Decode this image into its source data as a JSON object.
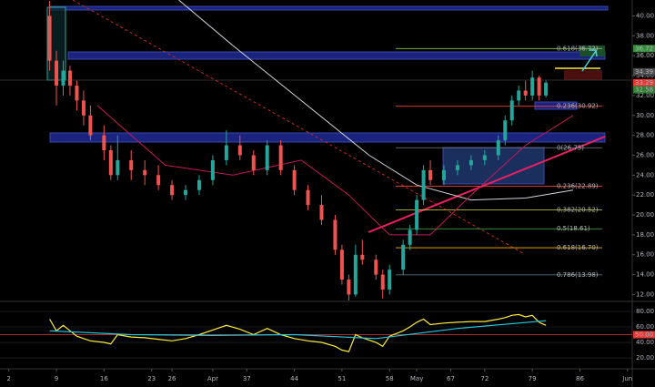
{
  "chart_data": {
    "type": "candlestick",
    "xlim": [
      0.7,
      93.7
    ],
    "ylim": [
      11.4,
      41.6
    ],
    "xticks": [
      2,
      9,
      16,
      23,
      26,
      {
        "value": 32,
        "label": "Apr"
      },
      37,
      44,
      51,
      58,
      {
        "value": 62,
        "label": "May"
      },
      67,
      72,
      79,
      86,
      {
        "value": 93,
        "label": "Jun"
      }
    ],
    "yticks": [
      {
        "value": 40,
        "label": "40.00"
      },
      {
        "value": 38,
        "label": "38.00"
      },
      {
        "value": 36,
        "label": "36.00"
      },
      {
        "value": 34,
        "label": "34.00"
      },
      {
        "value": 32,
        "label": "32.00"
      },
      {
        "value": 30,
        "label": "30.00"
      },
      {
        "value": 28,
        "label": "28.00"
      },
      {
        "value": 26,
        "label": "26.00"
      },
      {
        "value": 24,
        "label": "24.00"
      },
      {
        "value": 22,
        "label": "22.00"
      },
      {
        "value": 20,
        "label": "20.00"
      },
      {
        "value": 18,
        "label": "18.00"
      },
      {
        "value": 16,
        "label": "16.00"
      },
      {
        "value": 14,
        "label": "14.00"
      },
      {
        "value": 12,
        "label": "12.00"
      }
    ],
    "up_color": "#26a69a",
    "down_color": "#ef5350",
    "x": [
      8,
      9,
      10,
      11,
      12,
      13,
      14,
      16,
      17,
      18,
      20,
      22,
      24,
      26,
      28,
      30,
      32,
      34,
      36,
      38,
      40,
      42,
      44,
      46,
      48,
      50,
      51,
      52,
      53,
      54,
      56,
      57,
      58,
      60,
      61,
      62,
      63,
      64,
      66,
      68,
      70,
      72,
      74,
      75,
      76,
      77,
      78,
      79,
      80,
      81
    ],
    "open": [
      40,
      35.5,
      33,
      34.5,
      33,
      31.5,
      30,
      28,
      26.5,
      24,
      25.5,
      24.5,
      24,
      23,
      22,
      22.5,
      23.5,
      25.5,
      27,
      26,
      24.5,
      27,
      24.5,
      22.5,
      21,
      19.5,
      16.5,
      13.5,
      12,
      16,
      15.5,
      14,
      12.5,
      14.5,
      17,
      18.5,
      21.5,
      24.5,
      23.5,
      24.5,
      25,
      25.5,
      26,
      27.5,
      29.5,
      31.5,
      32.5,
      32,
      33.8,
      32
    ],
    "high": [
      41.5,
      36.5,
      35.5,
      35,
      33.5,
      32.5,
      31,
      29,
      27,
      28,
      26.5,
      25.5,
      25,
      23.5,
      23,
      24,
      26,
      28.5,
      28,
      26.5,
      27.5,
      27.5,
      25,
      23,
      22,
      20,
      17,
      14,
      17,
      17.5,
      16,
      14.5,
      15,
      17.5,
      19,
      22,
      25,
      25.5,
      25,
      25.5,
      26,
      26.5,
      28,
      30,
      32,
      33,
      33.5,
      34.5,
      34,
      33.5
    ],
    "low": [
      34.5,
      31,
      32,
      32,
      30.5,
      29,
      27.5,
      25.5,
      23.5,
      23.5,
      23.5,
      23,
      22.5,
      21.5,
      21.5,
      22,
      23,
      25,
      25.5,
      24,
      24,
      24,
      22,
      20.5,
      19,
      16,
      13,
      11.4,
      11.8,
      15,
      13.5,
      11.6,
      12,
      14,
      16.5,
      18,
      21,
      23,
      23,
      24,
      24.5,
      25,
      25.5,
      27,
      29,
      31,
      31.5,
      31.5,
      31.5,
      31.8
    ],
    "close": [
      35.5,
      33,
      34.5,
      33,
      31.5,
      30,
      28,
      26.5,
      24,
      25.5,
      24.5,
      24,
      23,
      22,
      22.5,
      23.5,
      25.5,
      27,
      26,
      24.5,
      27,
      24.5,
      22.5,
      21,
      19.5,
      16.5,
      13.5,
      12,
      16,
      15.5,
      14,
      12.5,
      14.5,
      17,
      18.5,
      21.5,
      24.5,
      23.5,
      24.5,
      25,
      25.5,
      26,
      27.5,
      29.5,
      31.5,
      32.5,
      32,
      33.8,
      32,
      33.29
    ],
    "lines": [
      {
        "color": "#d1d4dc",
        "x": [
          27,
          35,
          45,
          55,
          62,
          70,
          78,
          85
        ],
        "values": [
          41.6,
          37,
          31.5,
          26,
          23,
          21.5,
          21.7,
          22.5
        ]
      },
      {
        "color": "#c2185b",
        "x": [
          15,
          25,
          35,
          45,
          52,
          58,
          64,
          70,
          78,
          85
        ],
        "values": [
          31,
          25,
          24,
          25.5,
          22,
          18,
          18,
          22,
          27,
          30
        ]
      }
    ],
    "fib_levels": [
      {
        "value": 36.72,
        "label": "0.618(36.72)",
        "color": "#8bc34a"
      },
      {
        "value": 30.92,
        "label": "0.236(30.92)",
        "color": "#f44336"
      },
      {
        "value": 26.75,
        "label": "0(26.75)",
        "color": "#787b86"
      },
      {
        "value": 22.89,
        "label": "0.236(22.89)",
        "color": "#f44336"
      },
      {
        "value": 20.52,
        "label": "0.382(20.52)",
        "color": "#cddc39"
      },
      {
        "value": 18.61,
        "label": "0.5(18.61)",
        "color": "#4caf50"
      },
      {
        "value": 16.7,
        "label": "0.618(16.70)",
        "color": "#ffb300"
      },
      {
        "value": 13.98,
        "label": "0.786(13.98)",
        "color": "#546e7a"
      }
    ],
    "price_badges": [
      {
        "value": 36.72,
        "color": "#388e3c"
      },
      {
        "value": 34.39,
        "color": "#4a4a4a"
      },
      {
        "value": 33.29,
        "color": "#e53935"
      },
      {
        "value": 32.58,
        "color": "#2e7d32"
      }
    ],
    "indicator": {
      "ylim": [
        5.9,
        90.6
      ],
      "yticks": [
        {
          "value": 80,
          "label": "80.00"
        },
        {
          "value": 60,
          "label": "60.00"
        },
        {
          "value": 40,
          "label": "40.00"
        },
        {
          "value": 20,
          "label": "20.00"
        }
      ],
      "level": {
        "value": 50,
        "label": "50.00",
        "color": "#e53935"
      },
      "lines": [
        {
          "color": "#ffeb3b",
          "values": [
            70,
            55,
            62,
            55,
            48,
            45,
            42,
            40,
            38,
            50,
            47,
            46,
            44,
            42,
            45,
            50,
            56,
            62,
            57,
            50,
            58,
            50,
            45,
            42,
            40,
            35,
            30,
            28,
            50,
            46,
            40,
            35,
            48,
            55,
            60,
            66,
            70,
            63,
            65,
            66,
            67,
            67,
            70,
            72,
            75,
            76,
            73,
            75,
            66,
            62
          ]
        },
        {
          "color": "#26c6da",
          "x": [
            8,
            20,
            32,
            44,
            56,
            68,
            81
          ],
          "values": [
            55,
            50,
            49,
            50,
            45,
            58,
            68
          ]
        }
      ]
    }
  }
}
